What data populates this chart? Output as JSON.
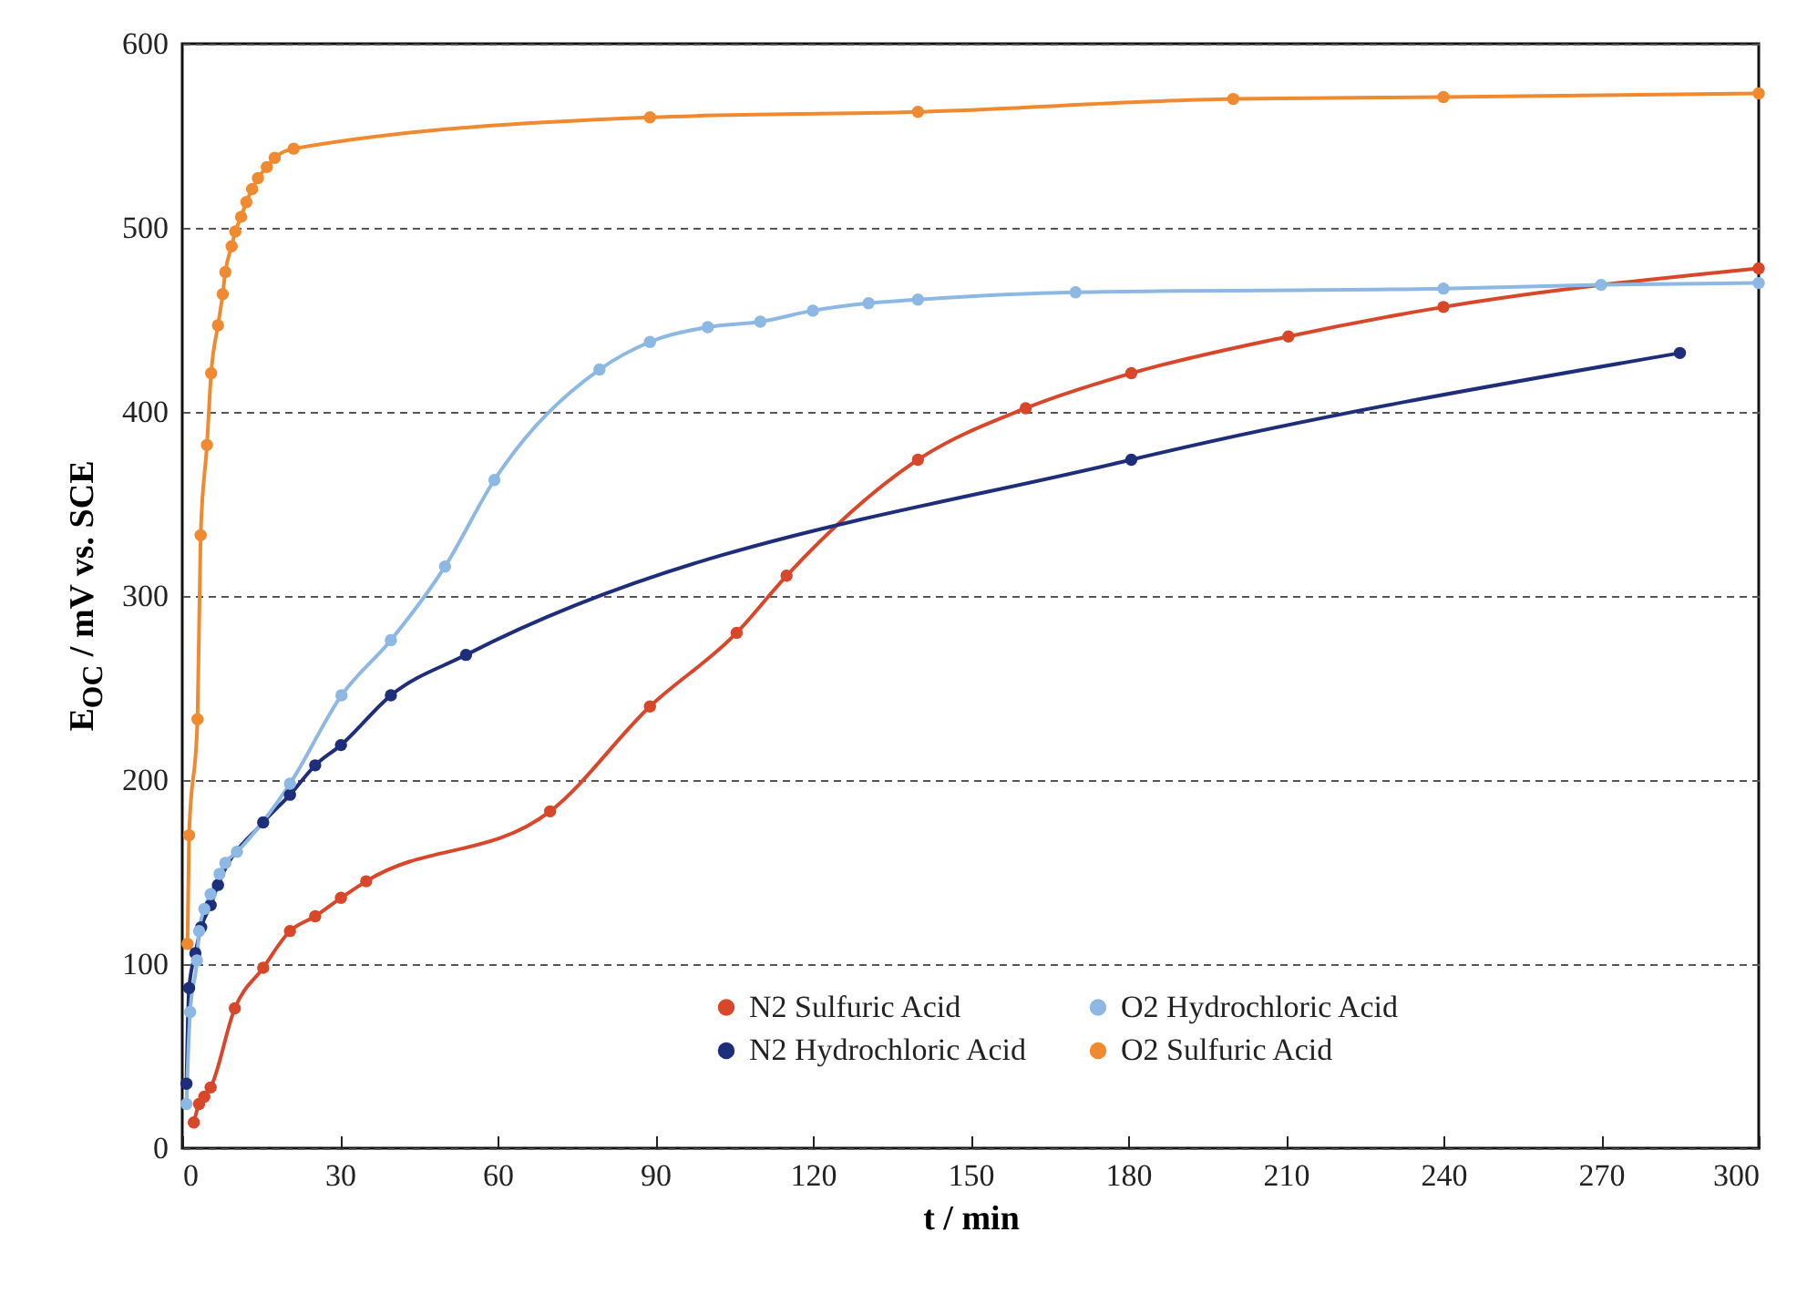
{
  "chart_data": {
    "type": "line",
    "xlabel": "t / min",
    "ylabel": "E$_{OC}$ / mV vs. SCE",
    "xlim": [
      0,
      300
    ],
    "xticks": [
      0,
      30,
      60,
      90,
      120,
      150,
      180,
      210,
      240,
      270,
      300
    ],
    "ylim": [
      0,
      600
    ],
    "yticks": [
      0,
      100,
      200,
      300,
      400,
      500,
      600
    ],
    "grid": "y",
    "legend": "bottom",
    "marker": "circle",
    "line_style": "solid",
    "series": [
      {
        "name": "N2 Sulfuric Acid",
        "color": "#d9472b",
        "x": [
          2.2,
          3.2,
          4.2,
          5.4,
          10,
          15.4,
          20.5,
          25.3,
          30.2,
          35,
          70,
          89,
          105.5,
          115,
          140,
          160.5,
          180.6,
          210.5,
          240,
          300
        ],
        "values": [
          14,
          24,
          28,
          33,
          76,
          98,
          118,
          126,
          136,
          145,
          183,
          240,
          280,
          311,
          374,
          402,
          421,
          441,
          457,
          478
        ]
      },
      {
        "name": "N2 Hydrochloric Acid",
        "color": "#1f2e7a",
        "x": [
          0.8,
          1.3,
          2.5,
          3.6,
          5.4,
          6.8,
          15.4,
          20.5,
          25.3,
          30.2,
          39.7,
          54,
          180.6,
          285
        ],
        "values": [
          35,
          87,
          106,
          120,
          132,
          143,
          177,
          192,
          208,
          219,
          246,
          268,
          374,
          432
        ]
      },
      {
        "name": "O2 Hydrochloric Acid",
        "color": "#8db8e3",
        "x": [
          0.8,
          1.5,
          2.8,
          3.2,
          4.2,
          5.4,
          7.1,
          8.2,
          10.4,
          20.5,
          30.3,
          39.7,
          50,
          59.4,
          79.4,
          89,
          100,
          110,
          120,
          130.6,
          140,
          170,
          240,
          270,
          300
        ],
        "values": [
          24,
          74,
          102,
          118,
          130,
          138,
          149,
          155,
          161,
          198,
          246,
          276,
          316,
          363,
          423,
          438,
          446,
          449,
          455,
          459,
          461,
          465,
          467,
          469,
          470
        ]
      },
      {
        "name": "O2 Sulfuric Acid",
        "color": "#f08a30",
        "x": [
          1,
          1.3,
          2.9,
          3.5,
          4.7,
          5.5,
          6.8,
          7.7,
          8.2,
          9.4,
          10.1,
          11.2,
          12.2,
          13.3,
          14.4,
          16.1,
          17.6,
          21.2,
          89,
          140,
          200,
          240,
          300
        ],
        "values": [
          111,
          170,
          233,
          333,
          382,
          421,
          447,
          464,
          476,
          490,
          498,
          506,
          514,
          521,
          527,
          533,
          538,
          543,
          560,
          563,
          570,
          571,
          573
        ]
      }
    ]
  }
}
